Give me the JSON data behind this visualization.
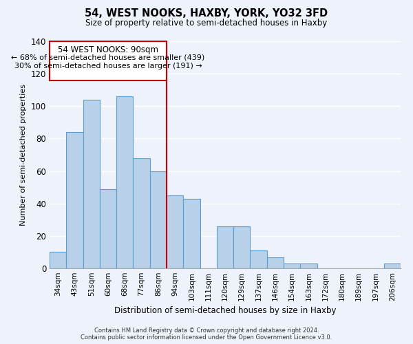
{
  "title": "54, WEST NOOKS, HAXBY, YORK, YO32 3FD",
  "subtitle": "Size of property relative to semi-detached houses in Haxby",
  "xlabel": "Distribution of semi-detached houses by size in Haxby",
  "ylabel": "Number of semi-detached properties",
  "categories": [
    "34sqm",
    "43sqm",
    "51sqm",
    "60sqm",
    "68sqm",
    "77sqm",
    "86sqm",
    "94sqm",
    "103sqm",
    "111sqm",
    "120sqm",
    "129sqm",
    "137sqm",
    "146sqm",
    "154sqm",
    "163sqm",
    "172sqm",
    "180sqm",
    "189sqm",
    "197sqm",
    "206sqm"
  ],
  "values": [
    10,
    84,
    104,
    49,
    106,
    68,
    60,
    45,
    43,
    0,
    26,
    26,
    11,
    7,
    3,
    3,
    0,
    0,
    0,
    0,
    3
  ],
  "bar_color": "#b8d0e8",
  "bar_edge_color": "#5a9fd4",
  "ylim": [
    0,
    140
  ],
  "yticks": [
    0,
    20,
    40,
    60,
    80,
    100,
    120,
    140
  ],
  "annotation_title": "54 WEST NOOKS: 90sqm",
  "annotation_line1": "← 68% of semi-detached houses are smaller (439)",
  "annotation_line2": "30% of semi-detached houses are larger (191) →",
  "annotation_box_color": "#ffffff",
  "annotation_box_edge": "#cc0000",
  "vline_color": "#cc0000",
  "footer_line1": "Contains HM Land Registry data © Crown copyright and database right 2024.",
  "footer_line2": "Contains public sector information licensed under the Open Government Licence v3.0.",
  "background_color": "#eef2fa"
}
